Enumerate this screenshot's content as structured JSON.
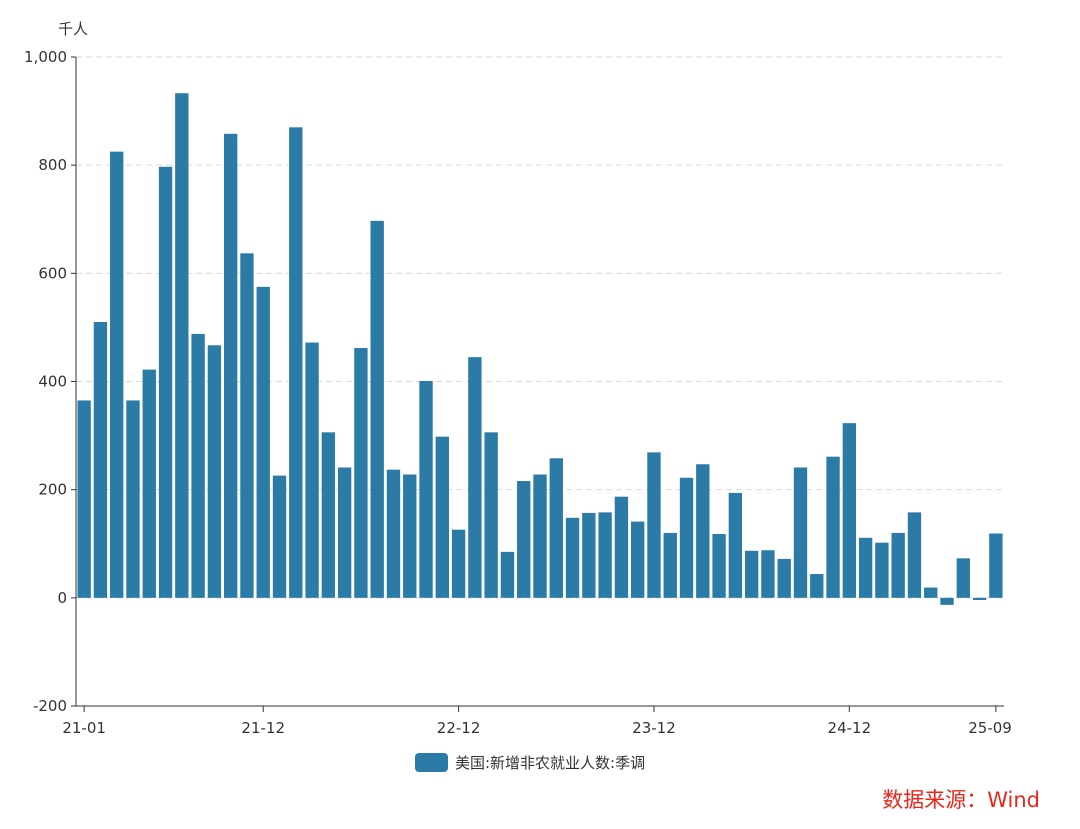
{
  "chart_data": {
    "type": "bar",
    "unit": "千人",
    "series": [
      {
        "name": "美国:新增非农就业人数:季调",
        "color": "#2b7ba6",
        "values": [
          365,
          510,
          825,
          365,
          422,
          797,
          933,
          488,
          467,
          858,
          637,
          575,
          226,
          870,
          472,
          306,
          241,
          462,
          697,
          237,
          228,
          401,
          298,
          126,
          445,
          306,
          85,
          216,
          228,
          258,
          148,
          157,
          158,
          187,
          141,
          269,
          120,
          222,
          247,
          118,
          194,
          87,
          88,
          72,
          241,
          44,
          261,
          323,
          111,
          102,
          120,
          158,
          19,
          -13,
          73,
          -4,
          119
        ]
      }
    ],
    "x_tick_labels": [
      "21-01",
      "21-12",
      "22-12",
      "23-12",
      "24-12",
      "25-09"
    ],
    "y_ticks": [
      {
        "value": -200,
        "label": "-200"
      },
      {
        "value": 0,
        "label": "0"
      },
      {
        "value": 200,
        "label": "200"
      },
      {
        "value": 400,
        "label": "400"
      },
      {
        "value": 600,
        "label": "600"
      },
      {
        "value": 800,
        "label": "800"
      },
      {
        "value": 1000,
        "label": "1,000"
      }
    ],
    "ylim": [
      -200,
      1000
    ],
    "grid": "horizontal-dashed",
    "legend_position": "bottom-center",
    "source": "数据来源：Wind"
  }
}
